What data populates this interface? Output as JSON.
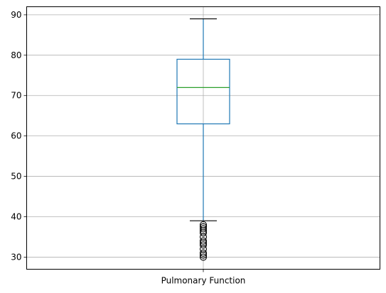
{
  "chart_data": {
    "type": "box",
    "categories": [
      "Pulmonary Function"
    ],
    "ylim": [
      27,
      92
    ],
    "yticks": [
      30,
      40,
      50,
      60,
      70,
      80,
      90
    ],
    "grid": true,
    "boxes": [
      {
        "name": "Pulmonary Function",
        "whisker_low": 39,
        "q1": 63,
        "median": 72,
        "q3": 79,
        "whisker_high": 89,
        "outliers": [
          38,
          37.5,
          37,
          36.5,
          36,
          35,
          34,
          33.5,
          33,
          32,
          31,
          30.5,
          30
        ]
      }
    ],
    "colors": {
      "box": "#1f77b4",
      "median": "#2ca02c",
      "whisker_cap": "#000000",
      "grid": "#b0b0b0",
      "outlier": "#000000"
    }
  }
}
